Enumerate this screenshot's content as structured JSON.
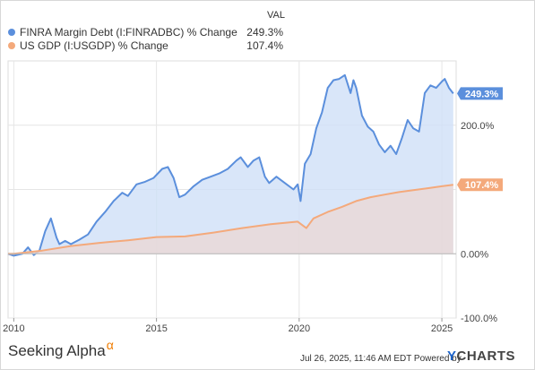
{
  "legend": {
    "header": "VAL",
    "items": [
      {
        "label": "FINRA Margin Debt (I:FINRADBC) % Change",
        "value": "249.3%",
        "color": "#5b8fdc"
      },
      {
        "label": "US GDP (I:USGDP) % Change",
        "value": "107.4%",
        "color": "#f4a97b"
      }
    ]
  },
  "footer": {
    "brand": "Seeking Alpha",
    "brand_mark": "α",
    "timestamp": "Jul 26, 2025, 11:46 AM EDT Powered by",
    "logo_y": "Y",
    "logo_rest": "CHARTS"
  },
  "chart_data": {
    "type": "area",
    "x_ticks": [
      "2010",
      "2015",
      "2020",
      "2025"
    ],
    "y_ticks": [
      "200.0%",
      "0.00%",
      "-100.0%"
    ],
    "xlim": [
      2009.8,
      2025.5
    ],
    "ylim": [
      -100,
      300
    ],
    "grid": true,
    "legend_position": "top-left",
    "series": [
      {
        "name": "FINRA Margin Debt (I:FINRADBC) % Change",
        "color": "#5b8fdc",
        "fill": "#cfe0f7",
        "end_label": "249.3%",
        "x": [
          2009.8,
          2010.0,
          2010.3,
          2010.5,
          2010.7,
          2010.9,
          2011.1,
          2011.3,
          2011.5,
          2011.6,
          2011.8,
          2012.0,
          2012.3,
          2012.6,
          2012.9,
          2013.2,
          2013.5,
          2013.8,
          2014.0,
          2014.3,
          2014.6,
          2014.9,
          2015.2,
          2015.4,
          2015.6,
          2015.8,
          2016.0,
          2016.3,
          2016.6,
          2016.9,
          2017.2,
          2017.5,
          2017.8,
          2017.95,
          2018.2,
          2018.4,
          2018.6,
          2018.8,
          2018.95,
          2019.2,
          2019.5,
          2019.8,
          2019.95,
          2020.05,
          2020.2,
          2020.4,
          2020.6,
          2020.8,
          2021.0,
          2021.2,
          2021.4,
          2021.6,
          2021.8,
          2021.9,
          2022.0,
          2022.2,
          2022.4,
          2022.6,
          2022.8,
          2023.0,
          2023.2,
          2023.4,
          2023.6,
          2023.8,
          2024.0,
          2024.2,
          2024.4,
          2024.6,
          2024.8,
          2025.0,
          2025.1,
          2025.25,
          2025.4
        ],
        "y": [
          0,
          -3,
          0,
          10,
          -2,
          5,
          35,
          55,
          25,
          15,
          20,
          15,
          22,
          30,
          50,
          65,
          82,
          95,
          90,
          108,
          112,
          118,
          132,
          135,
          118,
          88,
          92,
          105,
          115,
          120,
          125,
          132,
          145,
          150,
          135,
          145,
          150,
          120,
          110,
          120,
          110,
          100,
          108,
          82,
          140,
          155,
          195,
          220,
          258,
          270,
          272,
          278,
          250,
          270,
          258,
          215,
          198,
          190,
          170,
          158,
          168,
          155,
          180,
          208,
          195,
          190,
          250,
          262,
          258,
          268,
          272,
          258,
          249.3
        ]
      },
      {
        "name": "US GDP (I:USGDP) % Change",
        "color": "#f4a97b",
        "fill": "#ead8d6",
        "end_label": "107.4%",
        "x": [
          2009.8,
          2010.0,
          2011.0,
          2012.0,
          2013.0,
          2014.0,
          2015.0,
          2016.0,
          2017.0,
          2018.0,
          2019.0,
          2019.95,
          2020.25,
          2020.5,
          2021.0,
          2021.5,
          2022.0,
          2022.5,
          2023.0,
          2023.5,
          2024.0,
          2024.5,
          2025.0,
          2025.4
        ],
        "y": [
          0,
          0,
          5,
          12,
          17,
          21,
          26,
          27,
          33,
          40,
          46,
          50,
          40,
          55,
          65,
          73,
          82,
          88,
          92,
          96,
          99,
          102,
          105,
          107.4
        ]
      }
    ]
  }
}
